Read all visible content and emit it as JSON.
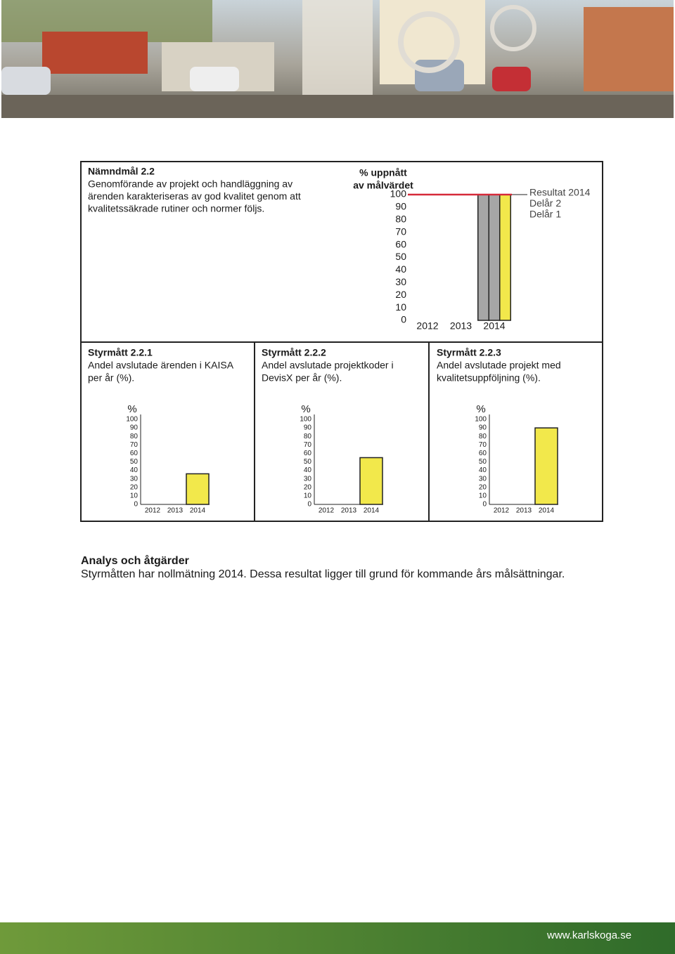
{
  "goal": {
    "title": "Nämndmål 2.2",
    "lines": [
      "Genomförande av projekt och handläggning av",
      "ärenden karakteriseras av god kvalitet genom att",
      "kvalitetssäkrade rutiner och normer följs."
    ]
  },
  "goal_chart": {
    "type": "bar",
    "title_lines": [
      "% uppnått",
      "av målvärdet"
    ],
    "categories": [
      "2012",
      "2013",
      "2014"
    ],
    "series": [
      {
        "name": "Delår 1",
        "color": "#a6a6a6",
        "values": [
          null,
          null,
          100
        ]
      },
      {
        "name": "Delår 2",
        "color": "#a6a6a6",
        "values": [
          null,
          null,
          100
        ]
      },
      {
        "name": "Resultat 2014",
        "color": "#f2e84b",
        "values": [
          null,
          null,
          100
        ]
      }
    ],
    "target": 100,
    "target_color": "#d62a3a",
    "ylim": [
      0,
      100
    ],
    "yticks": [
      0,
      10,
      20,
      30,
      40,
      50,
      60,
      70,
      80,
      90,
      100
    ]
  },
  "measures": [
    {
      "title": "Styrmått 2.2.1",
      "lines": [
        "Andel avslutade ärenden i KAISA",
        "per år (%)."
      ],
      "chart": {
        "type": "bar",
        "ylabel": "%",
        "categories": [
          "2012",
          "2013",
          "2014"
        ],
        "values": [
          null,
          null,
          36
        ],
        "color": "#f2e84b",
        "ylim": [
          0,
          100
        ],
        "yticks": [
          0,
          10,
          20,
          30,
          40,
          50,
          60,
          70,
          80,
          90,
          100
        ]
      }
    },
    {
      "title": "Styrmått 2.2.2",
      "lines": [
        "Andel avslutade projektkoder i",
        "DevisX per år (%)."
      ],
      "chart": {
        "type": "bar",
        "ylabel": "%",
        "categories": [
          "2012",
          "2013",
          "2014"
        ],
        "values": [
          null,
          null,
          55
        ],
        "color": "#f2e84b",
        "ylim": [
          0,
          100
        ],
        "yticks": [
          0,
          10,
          20,
          30,
          40,
          50,
          60,
          70,
          80,
          90,
          100
        ]
      }
    },
    {
      "title": "Styrmått 2.2.3",
      "lines": [
        "Andel avslutade projekt med",
        "kvalitetsuppföljning (%)."
      ],
      "chart": {
        "type": "bar",
        "ylabel": "%",
        "categories": [
          "2012",
          "2013",
          "2014"
        ],
        "values": [
          null,
          null,
          90
        ],
        "color": "#f2e84b",
        "ylim": [
          0,
          100
        ],
        "yticks": [
          0,
          10,
          20,
          30,
          40,
          50,
          60,
          70,
          80,
          90,
          100
        ]
      }
    }
  ],
  "analysis": {
    "title": "Analys och åtgärder",
    "text": "Styrmåtten har nollmätning 2014. Dessa resultat ligger till grund för kommande års målsättningar."
  },
  "footer": {
    "url": "www.karlskoga.se"
  }
}
